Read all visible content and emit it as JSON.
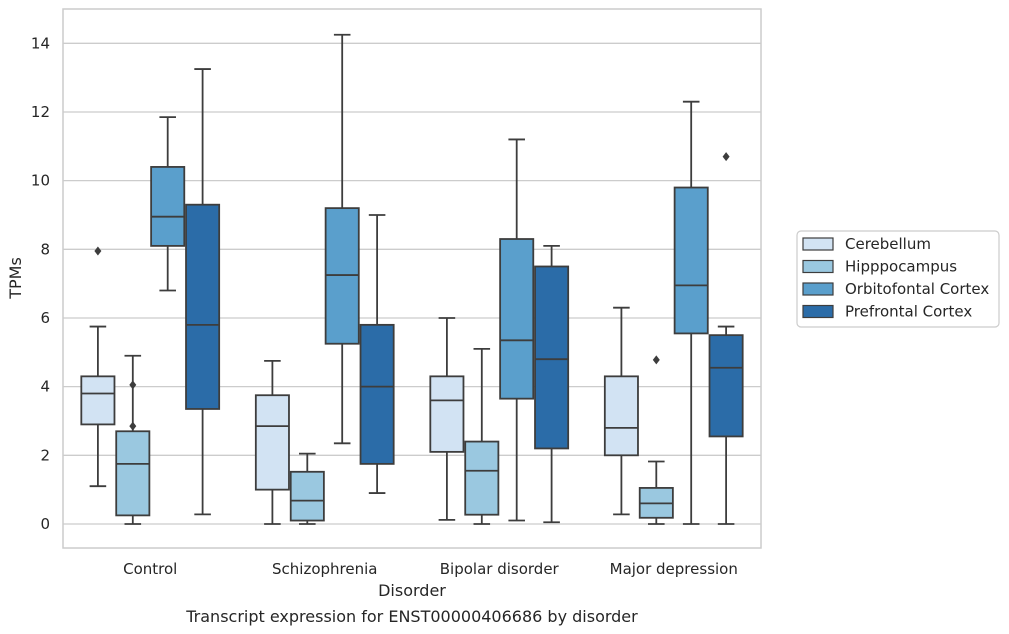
{
  "chart_data": {
    "type": "boxplot",
    "caption": "Transcript expression for ENST00000406686 by disorder",
    "xlabel": "Disorder",
    "ylabel": "TPMs",
    "ylim": [
      -0.7,
      15
    ],
    "yticks": [
      0,
      2,
      4,
      6,
      8,
      10,
      12,
      14
    ],
    "grid": true,
    "legend_position": "right",
    "categories": [
      "Control",
      "Schizophrenia",
      "Bipolar disorder",
      "Major depression"
    ],
    "series": [
      {
        "name": "Cerebellum",
        "color": "#d2e3f3",
        "boxes": [
          {
            "whislo": 1.1,
            "q1": 2.9,
            "med": 3.8,
            "q3": 4.3,
            "whishi": 5.75,
            "fliers": [
              7.95
            ]
          },
          {
            "whislo": 0.0,
            "q1": 1.0,
            "med": 2.85,
            "q3": 3.75,
            "whishi": 4.75,
            "fliers": []
          },
          {
            "whislo": 0.12,
            "q1": 2.1,
            "med": 3.6,
            "q3": 4.3,
            "whishi": 6.0,
            "fliers": []
          },
          {
            "whislo": 0.28,
            "q1": 2.0,
            "med": 2.8,
            "q3": 4.3,
            "whishi": 6.3,
            "fliers": []
          }
        ]
      },
      {
        "name": "Hipppocampus",
        "color": "#9ac8e0",
        "boxes": [
          {
            "whislo": 0.0,
            "q1": 0.25,
            "med": 1.75,
            "q3": 2.7,
            "whishi": 4.9,
            "fliers": [
              2.85,
              4.05
            ]
          },
          {
            "whislo": 0.0,
            "q1": 0.1,
            "med": 0.68,
            "q3": 1.52,
            "whishi": 2.05,
            "fliers": []
          },
          {
            "whislo": 0.0,
            "q1": 0.27,
            "med": 1.55,
            "q3": 2.4,
            "whishi": 5.1,
            "fliers": []
          },
          {
            "whislo": 0.0,
            "q1": 0.18,
            "med": 0.6,
            "q3": 1.05,
            "whishi": 1.82,
            "fliers": [
              4.78
            ]
          }
        ]
      },
      {
        "name": "Orbitofontal Cortex",
        "color": "#5a9fcc",
        "boxes": [
          {
            "whislo": 6.8,
            "q1": 8.1,
            "med": 8.95,
            "q3": 10.4,
            "whishi": 11.85,
            "fliers": []
          },
          {
            "whislo": 2.35,
            "q1": 5.25,
            "med": 7.25,
            "q3": 9.2,
            "whishi": 14.25,
            "fliers": []
          },
          {
            "whislo": 0.1,
            "q1": 3.65,
            "med": 5.35,
            "q3": 8.3,
            "whishi": 11.2,
            "fliers": []
          },
          {
            "whislo": 0.0,
            "q1": 5.55,
            "med": 6.95,
            "q3": 9.8,
            "whishi": 12.3,
            "fliers": []
          }
        ]
      },
      {
        "name": "Prefrontal Cortex",
        "color": "#2b6ca8",
        "boxes": [
          {
            "whislo": 0.28,
            "q1": 3.35,
            "med": 5.8,
            "q3": 9.3,
            "whishi": 13.25,
            "fliers": []
          },
          {
            "whislo": 0.9,
            "q1": 1.75,
            "med": 4.0,
            "q3": 5.8,
            "whishi": 9.0,
            "fliers": []
          },
          {
            "whislo": 0.05,
            "q1": 2.2,
            "med": 4.8,
            "q3": 7.5,
            "whishi": 8.1,
            "fliers": []
          },
          {
            "whislo": 0.0,
            "q1": 2.55,
            "med": 4.55,
            "q3": 5.5,
            "whishi": 5.75,
            "fliers": [
              10.7
            ]
          }
        ]
      }
    ]
  }
}
